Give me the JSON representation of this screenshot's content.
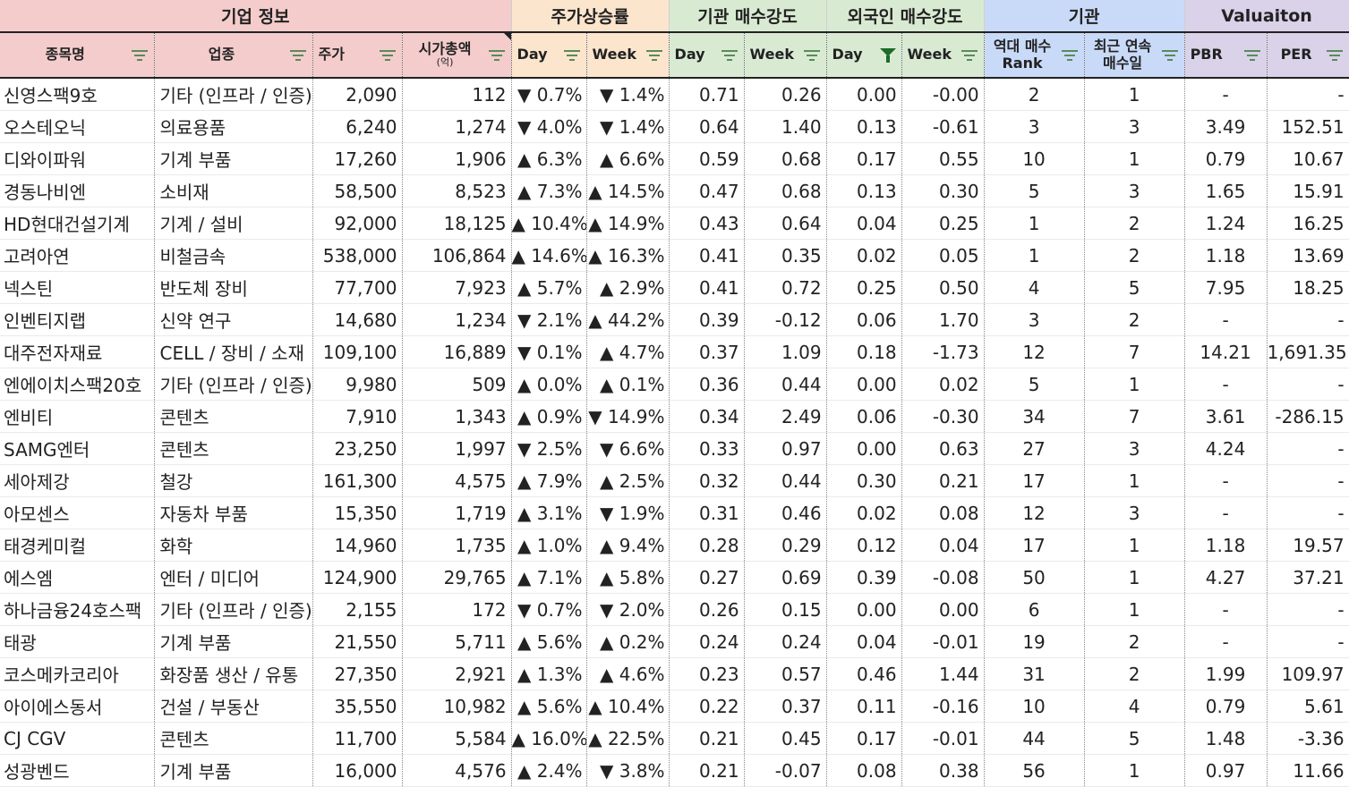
{
  "groups": {
    "company": "기업 정보",
    "price": "주가상승률",
    "inst": "기관 매수강도",
    "foreign": "외국인 매수강도",
    "inst2": "기관",
    "valuation": "Valuaiton"
  },
  "headers": {
    "name": "종목명",
    "sector": "업종",
    "price": "주가",
    "mcap": "시가총액",
    "mcap_unit": "(억)",
    "price_day": "Day",
    "price_week": "Week",
    "inst_day": "Day",
    "inst_week": "Week",
    "foreign_day": "Day",
    "foreign_week": "Week",
    "rank_line1": "역대 매수",
    "rank_line2": "Rank",
    "streak_line1": "최근 연속",
    "streak_line2": "매수일",
    "pbr": "PBR",
    "per": "PER"
  },
  "colors": {
    "up": "#ff0000",
    "down": "#0000ff",
    "company": "#f4cccc",
    "price": "#fce5cd",
    "inst": "#d9ead3",
    "inst2": "#c9daf8",
    "valuation": "#d9d2e9",
    "filter_icon": "#5a8a5a"
  },
  "rows": [
    {
      "name": "신영스팩9호",
      "sector": "기타 (인프라 / 인증)",
      "price": "2,090",
      "mcap": "112",
      "pday": "▼ 0.7%",
      "pday_dir": "down",
      "pweek": "▼ 1.4%",
      "pweek_dir": "down",
      "iday": "0.71",
      "iweek": "0.26",
      "fday": "0.00",
      "fweek": "-0.00",
      "fweek_dir": "down",
      "rank": "2",
      "streak": "1",
      "pbr": "-",
      "per": "-"
    },
    {
      "name": "오스테오닉",
      "sector": "의료용품",
      "price": "6,240",
      "mcap": "1,274",
      "pday": "▼ 4.0%",
      "pday_dir": "down",
      "pweek": "▼ 1.4%",
      "pweek_dir": "down",
      "iday": "0.64",
      "iweek": "1.40",
      "fday": "0.13",
      "fweek": "-0.61",
      "fweek_dir": "down",
      "rank": "3",
      "streak": "3",
      "pbr": "3.49",
      "per": "152.51"
    },
    {
      "name": "디와이파워",
      "sector": "기계 부품",
      "price": "17,260",
      "mcap": "1,906",
      "pday": "▲ 6.3%",
      "pday_dir": "up",
      "pweek": "▲ 6.6%",
      "pweek_dir": "up",
      "iday": "0.59",
      "iweek": "0.68",
      "fday": "0.17",
      "fweek": "0.55",
      "fweek_dir": "up",
      "rank": "10",
      "streak": "1",
      "pbr": "0.79",
      "per": "10.67"
    },
    {
      "name": "경동나비엔",
      "sector": "소비재",
      "price": "58,500",
      "mcap": "8,523",
      "pday": "▲ 7.3%",
      "pday_dir": "up",
      "pweek": "▲ 14.5%",
      "pweek_dir": "up",
      "iday": "0.47",
      "iweek": "0.68",
      "fday": "0.13",
      "fweek": "0.30",
      "fweek_dir": "up",
      "rank": "5",
      "streak": "3",
      "pbr": "1.65",
      "per": "15.91"
    },
    {
      "name": "HD현대건설기계",
      "sector": "기계 / 설비",
      "price": "92,000",
      "mcap": "18,125",
      "pday": "▲ 10.4%",
      "pday_dir": "up",
      "pweek": "▲ 14.9%",
      "pweek_dir": "up",
      "iday": "0.43",
      "iweek": "0.64",
      "fday": "0.04",
      "fweek": "0.25",
      "fweek_dir": "up",
      "rank": "1",
      "streak": "2",
      "pbr": "1.24",
      "per": "16.25"
    },
    {
      "name": "고려아연",
      "sector": "비철금속",
      "price": "538,000",
      "mcap": "106,864",
      "pday": "▲ 14.6%",
      "pday_dir": "up",
      "pweek": "▲ 16.3%",
      "pweek_dir": "up",
      "iday": "0.41",
      "iweek": "0.35",
      "fday": "0.02",
      "fweek": "0.05",
      "fweek_dir": "up",
      "rank": "1",
      "streak": "2",
      "pbr": "1.18",
      "per": "13.69"
    },
    {
      "name": "넥스틴",
      "sector": "반도체 장비",
      "price": "77,700",
      "mcap": "7,923",
      "pday": "▲ 5.7%",
      "pday_dir": "up",
      "pweek": "▲ 2.9%",
      "pweek_dir": "up",
      "iday": "0.41",
      "iweek": "0.72",
      "fday": "0.25",
      "fweek": "0.50",
      "fweek_dir": "up",
      "rank": "4",
      "streak": "5",
      "pbr": "7.95",
      "per": "18.25"
    },
    {
      "name": "인벤티지랩",
      "sector": "신약 연구",
      "price": "14,680",
      "mcap": "1,234",
      "pday": "▼ 2.1%",
      "pday_dir": "down",
      "pweek": "▲ 44.2%",
      "pweek_dir": "up",
      "iday": "0.39",
      "iweek": "-0.12",
      "fday": "0.06",
      "fweek": "1.70",
      "fweek_dir": "up",
      "rank": "3",
      "streak": "2",
      "pbr": "-",
      "per": "-"
    },
    {
      "name": "대주전자재료",
      "sector": "CELL / 장비 / 소재",
      "price": "109,100",
      "mcap": "16,889",
      "pday": "▼ 0.1%",
      "pday_dir": "down",
      "pweek": "▲ 4.7%",
      "pweek_dir": "up",
      "iday": "0.37",
      "iweek": "1.09",
      "fday": "0.18",
      "fweek": "-1.73",
      "fweek_dir": "down",
      "rank": "12",
      "streak": "7",
      "pbr": "14.21",
      "per": "1,691.35"
    },
    {
      "name": "엔에이치스팩20호",
      "sector": "기타 (인프라 / 인증)",
      "price": "9,980",
      "mcap": "509",
      "pday": "▲ 0.0%",
      "pday_dir": "up",
      "pweek": "▲ 0.1%",
      "pweek_dir": "up",
      "iday": "0.36",
      "iweek": "0.44",
      "fday": "0.00",
      "fweek": "0.02",
      "fweek_dir": "up",
      "rank": "5",
      "streak": "1",
      "pbr": "-",
      "per": "-"
    },
    {
      "name": "엔비티",
      "sector": "콘텐츠",
      "price": "7,910",
      "mcap": "1,343",
      "pday": "▲ 0.9%",
      "pday_dir": "up",
      "pweek": "▼ 14.9%",
      "pweek_dir": "down",
      "iday": "0.34",
      "iweek": "2.49",
      "fday": "0.06",
      "fweek": "-0.30",
      "fweek_dir": "down",
      "rank": "34",
      "streak": "7",
      "pbr": "3.61",
      "per": "-286.15"
    },
    {
      "name": "SAMG엔터",
      "sector": "콘텐츠",
      "price": "23,250",
      "mcap": "1,997",
      "pday": "▼ 2.5%",
      "pday_dir": "down",
      "pweek": "▼ 6.6%",
      "pweek_dir": "down",
      "iday": "0.33",
      "iweek": "0.97",
      "fday": "0.00",
      "fweek": "0.63",
      "fweek_dir": "up",
      "rank": "27",
      "streak": "3",
      "pbr": "4.24",
      "per": "-"
    },
    {
      "name": "세아제강",
      "sector": "철강",
      "price": "161,300",
      "mcap": "4,575",
      "pday": "▲ 7.9%",
      "pday_dir": "up",
      "pweek": "▲ 2.5%",
      "pweek_dir": "up",
      "iday": "0.32",
      "iweek": "0.44",
      "fday": "0.30",
      "fweek": "0.21",
      "fweek_dir": "up",
      "rank": "17",
      "streak": "1",
      "pbr": "-",
      "per": "-"
    },
    {
      "name": "아모센스",
      "sector": "자동차 부품",
      "price": "15,350",
      "mcap": "1,719",
      "pday": "▲ 3.1%",
      "pday_dir": "up",
      "pweek": "▼ 1.9%",
      "pweek_dir": "down",
      "iday": "0.31",
      "iweek": "0.46",
      "fday": "0.02",
      "fweek": "0.08",
      "fweek_dir": "up",
      "rank": "12",
      "streak": "3",
      "pbr": "-",
      "per": "-"
    },
    {
      "name": "태경케미컬",
      "sector": "화학",
      "price": "14,960",
      "mcap": "1,735",
      "pday": "▲ 1.0%",
      "pday_dir": "up",
      "pweek": "▲ 9.4%",
      "pweek_dir": "up",
      "iday": "0.28",
      "iweek": "0.29",
      "fday": "0.12",
      "fweek": "0.04",
      "fweek_dir": "up",
      "rank": "17",
      "streak": "1",
      "pbr": "1.18",
      "per": "19.57"
    },
    {
      "name": "에스엠",
      "sector": "엔터 / 미디어",
      "price": "124,900",
      "mcap": "29,765",
      "pday": "▲ 7.1%",
      "pday_dir": "up",
      "pweek": "▲ 5.8%",
      "pweek_dir": "up",
      "iday": "0.27",
      "iweek": "0.69",
      "fday": "0.39",
      "fweek": "-0.08",
      "fweek_dir": "down",
      "rank": "50",
      "streak": "1",
      "pbr": "4.27",
      "per": "37.21"
    },
    {
      "name": "하나금융24호스팩",
      "sector": "기타 (인프라 / 인증)",
      "price": "2,155",
      "mcap": "172",
      "pday": "▼ 0.7%",
      "pday_dir": "down",
      "pweek": "▼ 2.0%",
      "pweek_dir": "down",
      "iday": "0.26",
      "iweek": "0.15",
      "fday": "0.00",
      "fweek": "0.00",
      "fweek_dir": "up",
      "rank": "6",
      "streak": "1",
      "pbr": "-",
      "per": "-"
    },
    {
      "name": "태광",
      "sector": "기계 부품",
      "price": "21,550",
      "mcap": "5,711",
      "pday": "▲ 5.6%",
      "pday_dir": "up",
      "pweek": "▲ 0.2%",
      "pweek_dir": "up",
      "iday": "0.24",
      "iweek": "0.24",
      "fday": "0.04",
      "fweek": "-0.01",
      "fweek_dir": "down",
      "rank": "19",
      "streak": "2",
      "pbr": "-",
      "per": "-"
    },
    {
      "name": "코스메카코리아",
      "sector": "화장품 생산 / 유통",
      "price": "27,350",
      "mcap": "2,921",
      "pday": "▲ 1.3%",
      "pday_dir": "up",
      "pweek": "▲ 4.6%",
      "pweek_dir": "up",
      "iday": "0.23",
      "iweek": "0.57",
      "fday": "0.46",
      "fweek": "1.44",
      "fweek_dir": "up",
      "rank": "31",
      "streak": "2",
      "pbr": "1.99",
      "per": "109.97"
    },
    {
      "name": "아이에스동서",
      "sector": "건설 / 부동산",
      "price": "35,550",
      "mcap": "10,982",
      "pday": "▲ 5.6%",
      "pday_dir": "up",
      "pweek": "▲ 10.4%",
      "pweek_dir": "up",
      "iday": "0.22",
      "iweek": "0.37",
      "fday": "0.11",
      "fweek": "-0.16",
      "fweek_dir": "down",
      "rank": "10",
      "streak": "4",
      "pbr": "0.79",
      "per": "5.61"
    },
    {
      "name": "CJ CGV",
      "sector": "콘텐츠",
      "price": "11,700",
      "mcap": "5,584",
      "pday": "▲ 16.0%",
      "pday_dir": "up",
      "pweek": "▲ 22.5%",
      "pweek_dir": "up",
      "iday": "0.21",
      "iweek": "0.45",
      "fday": "0.17",
      "fweek": "-0.01",
      "fweek_dir": "down",
      "rank": "44",
      "streak": "5",
      "pbr": "1.48",
      "per": "-3.36"
    },
    {
      "name": "성광벤드",
      "sector": "기계 부품",
      "price": "16,000",
      "mcap": "4,576",
      "pday": "▲ 2.4%",
      "pday_dir": "up",
      "pweek": "▼ 3.8%",
      "pweek_dir": "down",
      "iday": "0.21",
      "iweek": "-0.07",
      "fday": "0.08",
      "fweek": "0.38",
      "fweek_dir": "up",
      "rank": "56",
      "streak": "1",
      "pbr": "0.97",
      "per": "11.66"
    }
  ]
}
